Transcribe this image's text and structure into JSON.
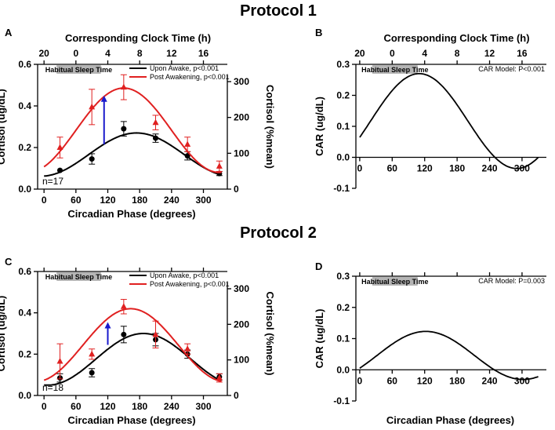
{
  "protocol1_title": "Protocol 1",
  "protocol2_title": "Protocol 2",
  "colors": {
    "upon_awake": "#000000",
    "post_awakening": "#e02020",
    "car_arrow": "#1a1acc",
    "sleep_box": "#b5b5b5"
  },
  "chart_data": [
    {
      "id": "A",
      "type": "scatter",
      "panel_label": "A",
      "top_axis_title": "Corresponding Clock Time (h)",
      "top_ticks": [
        {
          "phase": 0,
          "label": "20"
        },
        {
          "phase": 60,
          "label": "0"
        },
        {
          "phase": 120,
          "label": "4"
        },
        {
          "phase": 180,
          "label": "8"
        },
        {
          "phase": 240,
          "label": "12"
        },
        {
          "phase": 300,
          "label": "16"
        }
      ],
      "xlabel": "Circadian Phase (degrees)",
      "xlim": [
        -15,
        345
      ],
      "xticks": [
        0,
        60,
        120,
        180,
        240,
        300
      ],
      "ylabel": "Cortisol (ug/dL)",
      "ylim": [
        0,
        0.6
      ],
      "yticks": [
        "0.0",
        "0.2",
        "0.4",
        "0.6"
      ],
      "y2label": "Cortisol (%mean)",
      "y2ticks": [
        "0",
        "100",
        "200",
        "300"
      ],
      "sleep_box": {
        "label": "Habitual Sleep Time",
        "phase_start": 0,
        "phase_end": 107
      },
      "n_label": "n=17",
      "legend": [
        "Upon Awake, p<0.001",
        "Post Awakening, p<0.001"
      ],
      "series": [
        {
          "name": "Upon Awake, p<0.001",
          "x": [
            30,
            90,
            150,
            210,
            270,
            330
          ],
          "y": [
            0.09,
            0.145,
            0.29,
            0.245,
            0.16,
            0.075
          ],
          "err": [
            0.0,
            0.025,
            0.035,
            0.02,
            0.02,
            0.01
          ],
          "fit": {
            "mesor": 0.166,
            "amplitude": 0.104,
            "peak_phase": 174,
            "from": 0,
            "to": 335
          }
        },
        {
          "name": "Post Awakening, p<0.001",
          "x": [
            30,
            90,
            150,
            210,
            270,
            330
          ],
          "y": [
            0.2,
            0.395,
            0.49,
            0.32,
            0.215,
            0.11
          ],
          "err": [
            0.05,
            0.085,
            0.06,
            0.035,
            0.035,
            0.025
          ],
          "fit": {
            "mesor": 0.283,
            "amplitude": 0.203,
            "peak_phase": 150,
            "from": 0,
            "to": 335
          }
        }
      ],
      "arrow": {
        "phase": 113,
        "from": 0.215,
        "to": 0.45
      }
    },
    {
      "id": "B",
      "type": "line",
      "panel_label": "B",
      "top_axis_title": "Corresponding Clock Time (h)",
      "top_ticks": [
        {
          "phase": 0,
          "label": "20"
        },
        {
          "phase": 60,
          "label": "0"
        },
        {
          "phase": 120,
          "label": "4"
        },
        {
          "phase": 180,
          "label": "8"
        },
        {
          "phase": 240,
          "label": "12"
        },
        {
          "phase": 300,
          "label": "16"
        }
      ],
      "ylabel": "CAR (ug/dL)",
      "ylim": [
        -0.1,
        0.3
      ],
      "yticks": [
        "-0.1",
        "0.0",
        "0.1",
        "0.2",
        "0.3"
      ],
      "xlim": [
        -10,
        345
      ],
      "xticks": [
        0,
        60,
        120,
        180,
        240,
        300
      ],
      "sleep_box": {
        "label": "Habitual Sleep Time",
        "phase_start": 0,
        "phase_end": 107
      },
      "model_label": "CAR Model: P<0.001",
      "curve": {
        "mesor": 0.117,
        "amplitude": 0.153,
        "peak_phase": 110,
        "from": 0,
        "to": 330
      }
    },
    {
      "id": "C",
      "type": "scatter",
      "panel_label": "C",
      "xlabel": "Circadian Phase (degrees)",
      "xlim": [
        -15,
        345
      ],
      "xticks": [
        0,
        60,
        120,
        180,
        240,
        300
      ],
      "ylabel": "Cortisol (ug/dL)",
      "ylim": [
        0,
        0.6
      ],
      "yticks": [
        "0.0",
        "0.2",
        "0.4",
        "0.6"
      ],
      "y2label": "Cortisol (%mean)",
      "y2ticks": [
        "0",
        "100",
        "200",
        "300"
      ],
      "sleep_box": {
        "label": "Habitual Sleep Time",
        "phase_start": 0,
        "phase_end": 107
      },
      "n_label": "n=18",
      "legend": [
        "Upon Awake, p<0.001",
        "Post Awakening, p<0.001"
      ],
      "series": [
        {
          "name": "Upon Awake, p<0.001",
          "x": [
            30,
            90,
            150,
            210,
            270,
            330
          ],
          "y": [
            0.085,
            0.11,
            0.295,
            0.27,
            0.2,
            0.09
          ],
          "err": [
            0.02,
            0.02,
            0.04,
            0.03,
            0.02,
            0.015
          ],
          "fit": {
            "mesor": 0.175,
            "amplitude": 0.125,
            "peak_phase": 187,
            "from": 0,
            "to": 335
          }
        },
        {
          "name": "Post Awakening, p<0.001",
          "x": [
            30,
            90,
            150,
            210,
            270,
            330
          ],
          "y": [
            0.165,
            0.2,
            0.43,
            0.295,
            0.225,
            0.085
          ],
          "err": [
            0.085,
            0.025,
            0.035,
            0.065,
            0.025,
            0.02
          ],
          "fit": {
            "mesor": 0.243,
            "amplitude": 0.177,
            "peak_phase": 163,
            "from": 0,
            "to": 335
          }
        }
      ],
      "arrow": {
        "phase": 120,
        "from": 0.245,
        "to": 0.355
      }
    },
    {
      "id": "D",
      "type": "line",
      "panel_label": "D",
      "xlabel": "Circadian Phase (degrees)",
      "ylabel": "CAR (ug/dL)",
      "ylim": [
        -0.1,
        0.3
      ],
      "yticks": [
        "-0.1",
        "0.0",
        "0.1",
        "0.2",
        "0.3"
      ],
      "xlim": [
        -10,
        345
      ],
      "xticks": [
        0,
        60,
        120,
        180,
        240,
        300
      ],
      "sleep_box": {
        "label": "Habitual Sleep Time",
        "phase_start": 0,
        "phase_end": 107
      },
      "model_label": "CAR Model: P=0.003",
      "curve": {
        "mesor": 0.046,
        "amplitude": 0.077,
        "peak_phase": 122,
        "from": 0,
        "to": 330
      }
    }
  ]
}
